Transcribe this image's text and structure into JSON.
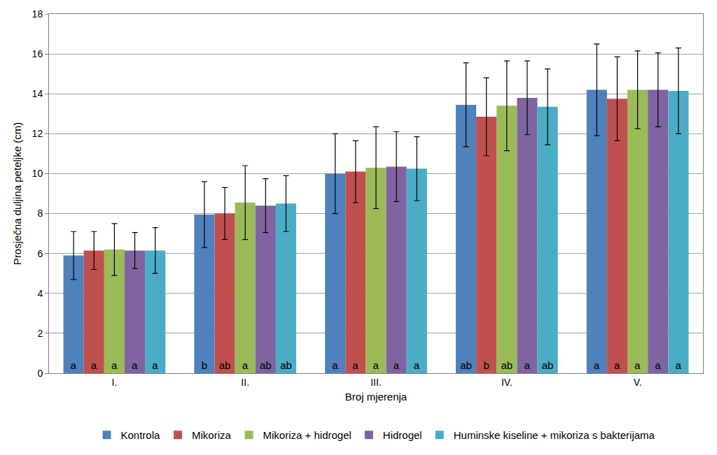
{
  "chart_data": {
    "type": "bar",
    "x_label": "Broj mjerenja",
    "y_label": "Prosječna duljina peteljke (cm)",
    "categories": [
      "I.",
      "II.",
      "III.",
      "IV.",
      "V."
    ],
    "series": [
      {
        "name": "Kontrola",
        "color": "#4f81bd",
        "values": [
          5.9,
          7.95,
          10.0,
          13.45,
          14.2
        ],
        "errors": [
          1.2,
          1.65,
          2.0,
          2.1,
          2.3
        ],
        "letters": [
          "a",
          "b",
          "a",
          "ab",
          "a"
        ]
      },
      {
        "name": "Mikoriza",
        "color": "#c0504d",
        "values": [
          6.15,
          8.0,
          10.1,
          12.85,
          13.75
        ],
        "errors": [
          0.95,
          1.3,
          1.55,
          1.95,
          2.1
        ],
        "letters": [
          "a",
          "ab",
          "a",
          "b",
          "a"
        ]
      },
      {
        "name": "Mikoriza + hidrogel",
        "color": "#9bbb59",
        "values": [
          6.2,
          8.55,
          10.3,
          13.4,
          14.2
        ],
        "errors": [
          1.3,
          1.85,
          2.05,
          2.25,
          1.95
        ],
        "letters": [
          "a",
          "a",
          "a",
          "ab",
          "a"
        ]
      },
      {
        "name": "Hidrogel",
        "color": "#8064a2",
        "values": [
          6.15,
          8.4,
          10.35,
          13.8,
          14.2
        ],
        "errors": [
          0.9,
          1.35,
          1.75,
          1.85,
          1.85
        ],
        "letters": [
          "a",
          "ab",
          "a",
          "a",
          "a"
        ]
      },
      {
        "name": "Huminske kiseline + mikoriza s bakterijama",
        "color": "#4bacc6",
        "values": [
          6.15,
          8.5,
          10.25,
          13.35,
          14.15
        ],
        "errors": [
          1.15,
          1.4,
          1.6,
          1.9,
          2.15
        ],
        "letters": [
          "a",
          "ab",
          "a",
          "ab",
          "a"
        ]
      }
    ],
    "ylim": [
      0,
      18
    ],
    "yticks": [
      0,
      2,
      4,
      6,
      8,
      10,
      12,
      14,
      16,
      18
    ],
    "grid": true,
    "legend": "bottom"
  }
}
